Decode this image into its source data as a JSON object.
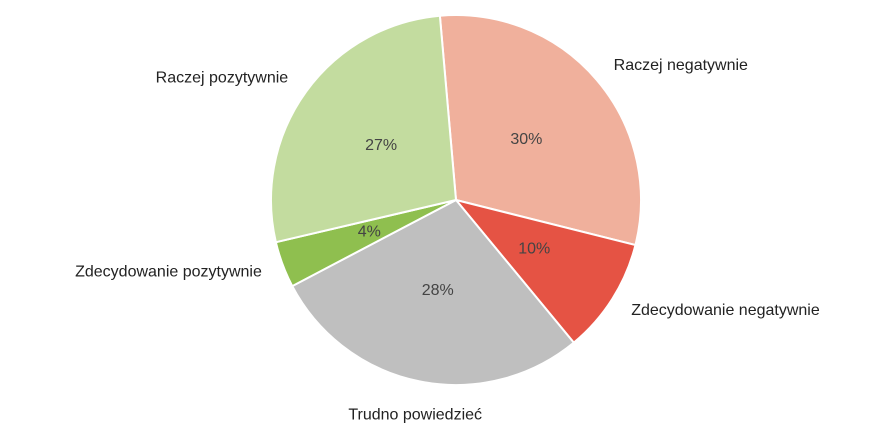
{
  "chart_data": {
    "type": "pie",
    "categories": [
      "Raczej negatywnie",
      "Zdecydowanie negatywnie",
      "Trudno powiedzieć",
      "Zdecydowanie pozytywnie",
      "Raczej pozytywnie"
    ],
    "values": [
      30,
      10,
      28,
      4,
      27
    ],
    "value_labels": [
      "30%",
      "10%",
      "28%",
      "4%",
      "27%"
    ],
    "colors": [
      "#f0b09c",
      "#e55344",
      "#bfbfbf",
      "#8fbf4f",
      "#c3dc9f"
    ]
  }
}
